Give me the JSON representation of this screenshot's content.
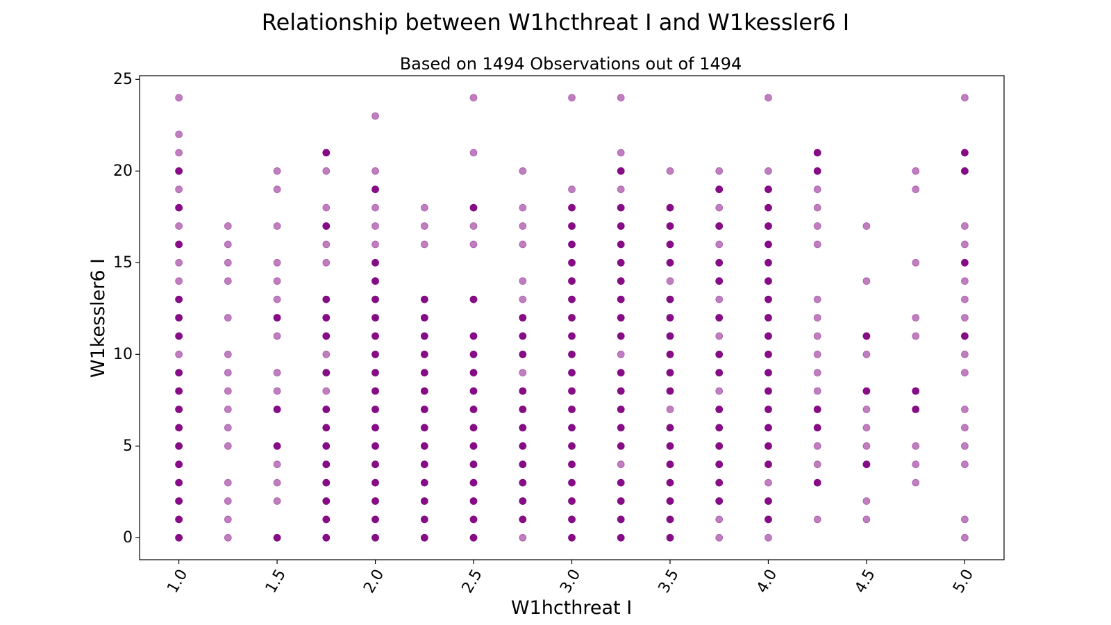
{
  "chart_data": {
    "type": "scatter",
    "title": "Relationship between W1hcthreat I and W1kessler6 I",
    "subtitle": "Based on 1494 Observations out of 1494",
    "xlabel": "W1hcthreat I",
    "ylabel": "W1kessler6 I",
    "xlim": [
      0.8,
      5.2
    ],
    "ylim": [
      -1.2,
      25.2
    ],
    "xticks": [
      1.0,
      1.5,
      2.0,
      2.5,
      3.0,
      3.5,
      4.0,
      4.5,
      5.0
    ],
    "xtick_labels": [
      "1.0",
      "1.5",
      "2.0",
      "2.5",
      "3.0",
      "3.5",
      "4.0",
      "4.5",
      "5.0"
    ],
    "yticks": [
      0,
      5,
      10,
      15,
      20,
      25
    ],
    "ytick_labels": [
      "0",
      "5",
      "10",
      "15",
      "20",
      "25"
    ],
    "marker_color": "#800080",
    "grid": false,
    "point_groups": [
      {
        "x": 1.0,
        "dense": [
          0,
          1,
          2,
          3,
          4,
          5,
          6,
          7,
          8,
          9,
          11,
          12,
          13,
          16,
          18,
          20
        ],
        "light": [
          10,
          14,
          15,
          17,
          19,
          21,
          22,
          24
        ]
      },
      {
        "x": 1.25,
        "dense": [],
        "light": [
          0,
          1,
          2,
          3,
          5,
          6,
          7,
          8,
          9,
          10,
          12,
          14,
          15,
          16,
          17
        ]
      },
      {
        "x": 1.5,
        "dense": [
          0,
          5,
          7,
          12
        ],
        "light": [
          2,
          3,
          4,
          8,
          9,
          11,
          13,
          14,
          15,
          17,
          19,
          20
        ]
      },
      {
        "x": 1.75,
        "dense": [
          0,
          1,
          2,
          3,
          4,
          5,
          6,
          7,
          9,
          11,
          12,
          13,
          17,
          21
        ],
        "light": [
          8,
          10,
          15,
          16,
          18,
          20
        ]
      },
      {
        "x": 2.0,
        "dense": [
          0,
          1,
          2,
          3,
          4,
          5,
          6,
          7,
          8,
          9,
          10,
          11,
          12,
          13,
          14,
          15,
          19
        ],
        "light": [
          16,
          17,
          18,
          20,
          23
        ]
      },
      {
        "x": 2.25,
        "dense": [
          0,
          1,
          2,
          3,
          4,
          5,
          6,
          7,
          8,
          9,
          10,
          11,
          12,
          13
        ],
        "light": [
          16,
          17,
          18
        ]
      },
      {
        "x": 2.5,
        "dense": [
          0,
          1,
          2,
          3,
          4,
          5,
          6,
          7,
          8,
          9,
          10,
          11,
          13,
          18
        ],
        "light": [
          16,
          17,
          21,
          24
        ]
      },
      {
        "x": 2.75,
        "dense": [
          1,
          2,
          3,
          4,
          5,
          6,
          7,
          8,
          10,
          11,
          12
        ],
        "light": [
          0,
          9,
          13,
          14,
          16,
          17,
          18,
          20
        ]
      },
      {
        "x": 3.0,
        "dense": [
          0,
          1,
          2,
          3,
          4,
          5,
          6,
          7,
          8,
          9,
          10,
          11,
          12,
          13,
          14,
          15,
          16,
          17,
          18
        ],
        "light": [
          19,
          24
        ]
      },
      {
        "x": 3.25,
        "dense": [
          0,
          1,
          2,
          3,
          5,
          6,
          7,
          8,
          9,
          11,
          12,
          13,
          14,
          15,
          16,
          17,
          18,
          20
        ],
        "light": [
          4,
          10,
          19,
          21,
          24
        ]
      },
      {
        "x": 3.5,
        "dense": [
          0,
          1,
          2,
          3,
          4,
          5,
          6,
          8,
          9,
          10,
          11,
          12,
          13,
          15,
          16,
          17,
          18
        ],
        "light": [
          7,
          14,
          20
        ]
      },
      {
        "x": 3.75,
        "dense": [
          2,
          3,
          4,
          5,
          6,
          7,
          9,
          10,
          12,
          14,
          15,
          17,
          19
        ],
        "light": [
          0,
          1,
          8,
          11,
          13,
          16,
          18,
          20
        ]
      },
      {
        "x": 4.0,
        "dense": [
          1,
          2,
          4,
          5,
          6,
          7,
          8,
          9,
          10,
          11,
          12,
          13,
          14,
          15,
          16,
          17,
          18,
          19
        ],
        "light": [
          0,
          3,
          20,
          24
        ]
      },
      {
        "x": 4.25,
        "dense": [
          3,
          6,
          7,
          20,
          21
        ],
        "light": [
          1,
          4,
          5,
          8,
          9,
          10,
          11,
          12,
          13,
          16,
          17,
          18,
          19
        ]
      },
      {
        "x": 4.5,
        "dense": [
          4,
          8,
          11
        ],
        "light": [
          1,
          2,
          5,
          6,
          7,
          10,
          14,
          17
        ]
      },
      {
        "x": 4.75,
        "dense": [
          7,
          8
        ],
        "light": [
          3,
          4,
          5,
          11,
          12,
          15,
          19,
          20
        ]
      },
      {
        "x": 5.0,
        "dense": [
          11,
          15,
          20,
          21
        ],
        "light": [
          0,
          1,
          4,
          5,
          6,
          7,
          9,
          10,
          12,
          13,
          14,
          16,
          17,
          24
        ]
      }
    ]
  }
}
